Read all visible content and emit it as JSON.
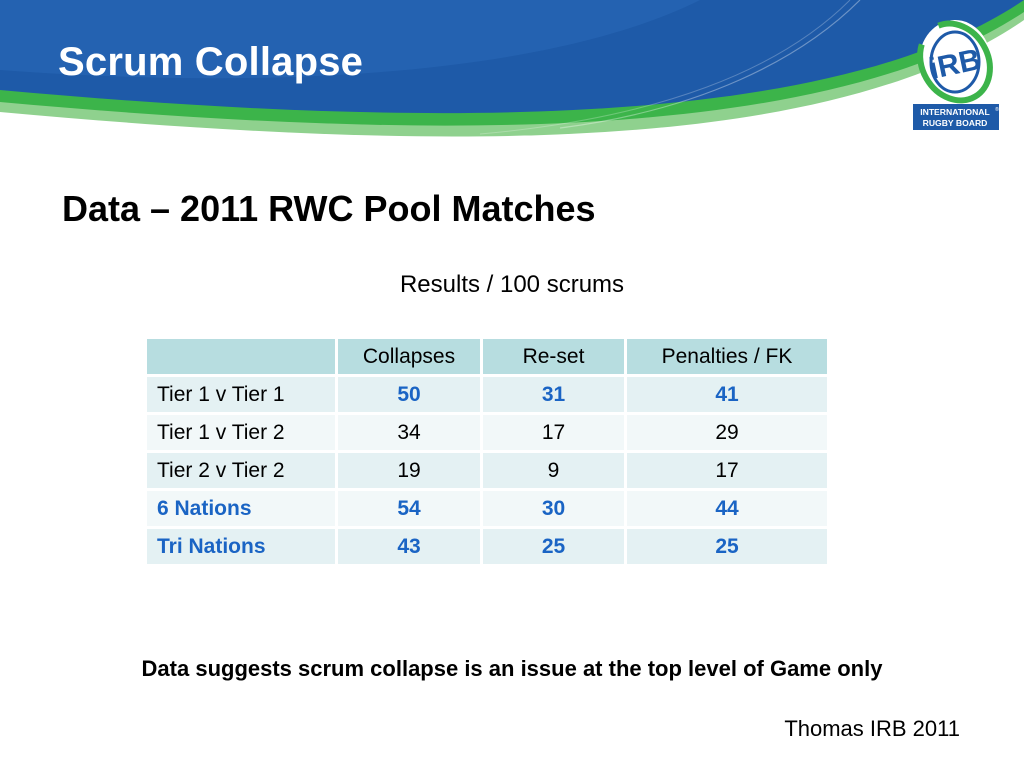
{
  "slide": {
    "title": "Scrum Collapse",
    "subtitle": "Data – 2011 RWC Pool Matches",
    "caption": "Results / 100 scrums",
    "conclusion": "Data suggests scrum collapse is an issue at the top level of Game only",
    "source": "Thomas IRB 2011"
  },
  "logo": {
    "monogram": "iRB",
    "line1": "INTERNATIONAL",
    "line2": "RUGBY BOARD",
    "registered": "®"
  },
  "table": {
    "headers": [
      "",
      "Collapses",
      "Re-set",
      "Penalties / FK"
    ],
    "rows": [
      {
        "label": "Tier 1 v Tier 1",
        "collapses": "50",
        "reset": "31",
        "penalties": "41",
        "label_highlight": false,
        "values_highlight": true
      },
      {
        "label": "Tier 1 v Tier 2",
        "collapses": "34",
        "reset": "17",
        "penalties": "29",
        "label_highlight": false,
        "values_highlight": false
      },
      {
        "label": "Tier 2 v Tier 2",
        "collapses": "19",
        "reset": "9",
        "penalties": "17",
        "label_highlight": false,
        "values_highlight": false
      },
      {
        "label": "6 Nations",
        "collapses": "54",
        "reset": "30",
        "penalties": "44",
        "label_highlight": true,
        "values_highlight": true
      },
      {
        "label": "Tri Nations",
        "collapses": "43",
        "reset": "25",
        "penalties": "25",
        "label_highlight": true,
        "values_highlight": true
      }
    ]
  },
  "colors": {
    "header_blue": "#1e5aa8",
    "header_green": "#3cb44a",
    "highlight_blue": "#1a64c4",
    "table_header_bg": "#b7dde0",
    "table_row_bg": "#e4f1f3"
  }
}
